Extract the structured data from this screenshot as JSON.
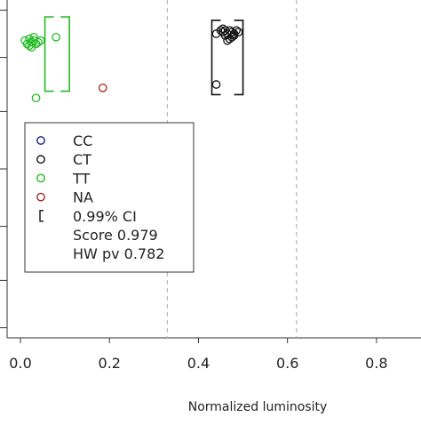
{
  "chart_data": {
    "type": "scatter",
    "xlabel": "Normalized luminosity",
    "ylabel": "",
    "xlim": [
      -0.03,
      0.9
    ],
    "ylim": [
      0,
      1
    ],
    "x_ticks": [
      "0.0",
      "0.2",
      "0.4",
      "0.6",
      "0.8"
    ],
    "x_tick_values": [
      0.0,
      0.2,
      0.4,
      0.6,
      0.8
    ],
    "y_ticks": [
      0.03,
      0.17,
      0.33,
      0.5,
      0.67,
      0.83,
      0.97
    ],
    "grid": false,
    "threshold_lines": [
      0.33,
      0.62
    ],
    "series": [
      {
        "name": "CC",
        "color": "#1a1a8c",
        "points": []
      },
      {
        "name": "CT",
        "color": "#111111",
        "points": [
          [
            0.44,
            0.9
          ],
          [
            0.45,
            0.91
          ],
          [
            0.455,
            0.905
          ],
          [
            0.46,
            0.91
          ],
          [
            0.465,
            0.9
          ],
          [
            0.47,
            0.91
          ],
          [
            0.475,
            0.905
          ],
          [
            0.48,
            0.9
          ],
          [
            0.485,
            0.91
          ],
          [
            0.49,
            0.905
          ],
          [
            0.46,
            0.895
          ],
          [
            0.47,
            0.885
          ],
          [
            0.475,
            0.89
          ],
          [
            0.455,
            0.915
          ],
          [
            0.48,
            0.895
          ],
          [
            0.465,
            0.88
          ],
          [
            0.44,
            0.75
          ]
        ]
      },
      {
        "name": "TT",
        "color": "#22bb22",
        "points": [
          [
            0.01,
            0.88
          ],
          [
            0.015,
            0.87
          ],
          [
            0.02,
            0.885
          ],
          [
            0.025,
            0.875
          ],
          [
            0.03,
            0.88
          ],
          [
            0.035,
            0.87
          ],
          [
            0.02,
            0.865
          ],
          [
            0.03,
            0.89
          ],
          [
            0.04,
            0.875
          ],
          [
            0.045,
            0.88
          ],
          [
            0.025,
            0.86
          ],
          [
            0.08,
            0.89
          ],
          [
            0.035,
            0.71
          ]
        ]
      },
      {
        "name": "NA",
        "color": "#aa2222",
        "points": [
          [
            0.185,
            0.74
          ]
        ]
      }
    ],
    "ci_brackets": [
      {
        "series": "TT",
        "x_left": 0.055,
        "x_right": 0.11,
        "y_top": 0.95,
        "y_bottom": 0.73,
        "color": "#22bb22"
      },
      {
        "series": "CT",
        "x_left": 0.43,
        "x_right": 0.5,
        "y_top": 0.94,
        "y_bottom": 0.72,
        "color": "#111111"
      }
    ],
    "legend": {
      "placement": "top-left",
      "entries": [
        {
          "label": "CC",
          "marker": "circle",
          "color": "#1a1a8c"
        },
        {
          "label": "CT",
          "marker": "circle",
          "color": "#111111"
        },
        {
          "label": "TT",
          "marker": "circle",
          "color": "#22bb22"
        },
        {
          "label": "NA",
          "marker": "circle",
          "color": "#aa2222"
        },
        {
          "label": "0.99% CI",
          "marker": "bracket",
          "color": "#111111"
        },
        {
          "label": "Score 0.979",
          "marker": "none",
          "color": ""
        },
        {
          "label": "HW pv 0.782",
          "marker": "none",
          "color": ""
        }
      ]
    }
  }
}
